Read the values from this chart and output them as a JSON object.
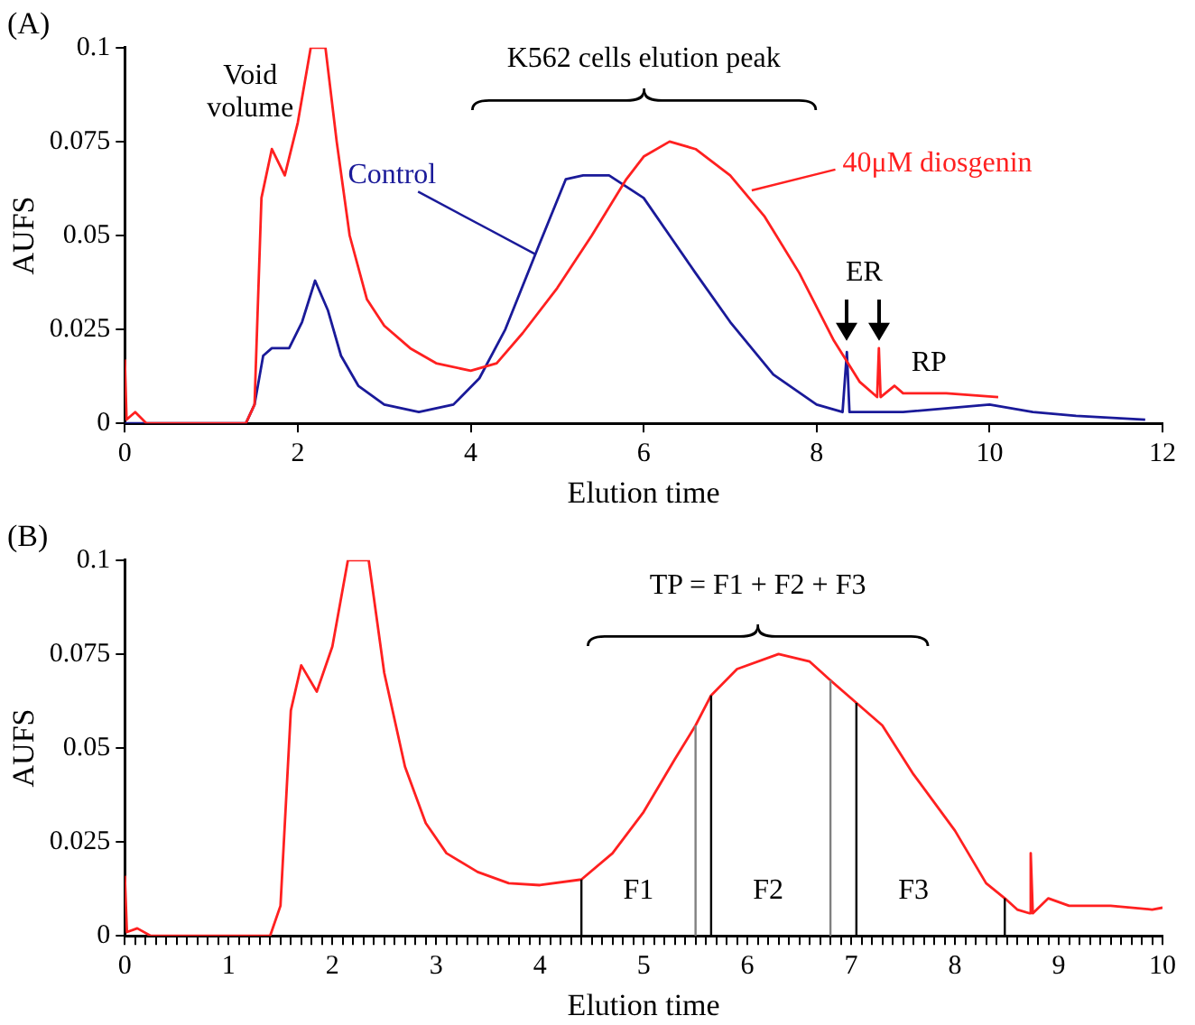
{
  "chart_data": [
    {
      "type": "line",
      "title": "(A)",
      "xlabel": "Elution time",
      "ylabel": "AUFS",
      "xlim": [
        0,
        12
      ],
      "xticks": [
        0,
        2,
        4,
        6,
        8,
        10,
        12
      ],
      "ylim": [
        0,
        0.1
      ],
      "yticks": [
        0,
        0.025,
        0.05,
        0.075,
        0.1
      ],
      "grid": false,
      "legend": "right",
      "marker": "none",
      "line_style": "solid",
      "series": [
        {
          "name": "40μM diosgenin",
          "color": "#ff2020",
          "x": [
            0,
            0.02,
            0.12,
            0.25,
            1.4,
            1.5,
            1.58,
            1.7,
            1.85,
            2.0,
            2.15,
            2.32,
            2.45,
            2.6,
            2.8,
            3.0,
            3.3,
            3.6,
            4.0,
            4.3,
            4.6,
            5.0,
            5.4,
            5.8,
            6.0,
            6.3,
            6.6,
            7.0,
            7.4,
            7.8,
            8.2,
            8.5,
            8.7,
            8.72,
            8.74,
            8.9,
            9.0,
            9.5,
            10.1
          ],
          "values": [
            0.017,
            0.001,
            0.003,
            0,
            0,
            0.005,
            0.06,
            0.073,
            0.066,
            0.08,
            0.1,
            0.1,
            0.075,
            0.05,
            0.033,
            0.026,
            0.02,
            0.016,
            0.014,
            0.016,
            0.024,
            0.036,
            0.05,
            0.065,
            0.071,
            0.075,
            0.073,
            0.066,
            0.055,
            0.04,
            0.022,
            0.011,
            0.007,
            0.02,
            0.007,
            0.01,
            0.008,
            0.008,
            0.007
          ]
        },
        {
          "name": "Control",
          "color": "#1a1a99",
          "x": [
            0,
            1.4,
            1.5,
            1.6,
            1.7,
            1.9,
            2.05,
            2.2,
            2.35,
            2.5,
            2.7,
            3.0,
            3.4,
            3.8,
            4.1,
            4.4,
            4.8,
            5.1,
            5.3,
            5.6,
            5.8,
            6.0,
            6.3,
            6.6,
            7.0,
            7.5,
            8.0,
            8.3,
            8.35,
            8.38,
            9.0,
            10.0,
            10.5,
            11.0,
            11.8
          ],
          "values": [
            0,
            0,
            0.005,
            0.018,
            0.02,
            0.02,
            0.027,
            0.038,
            0.03,
            0.018,
            0.01,
            0.005,
            0.003,
            0.005,
            0.012,
            0.025,
            0.048,
            0.065,
            0.066,
            0.066,
            0.063,
            0.06,
            0.05,
            0.04,
            0.027,
            0.013,
            0.005,
            0.003,
            0.019,
            0.003,
            0.003,
            0.005,
            0.003,
            0.002,
            0.001
          ]
        }
      ],
      "annotations": [
        "Void volume",
        "K562 cells elution peak",
        "ER",
        "RP"
      ]
    },
    {
      "type": "line",
      "title": "(B)",
      "xlabel": "Elution time",
      "ylabel": "AUFS",
      "xlim": [
        0,
        10
      ],
      "xticks": [
        0,
        {
          "value": 0.1,
          "label": null
        },
        {
          "value": 0.2,
          "label": null
        },
        {
          "value": 0.3,
          "label": null
        },
        {
          "value": 0.4,
          "label": null
        },
        {
          "value": 0.5,
          "label": null
        },
        {
          "value": 0.6,
          "label": null
        },
        {
          "value": 0.7,
          "label": null
        },
        {
          "value": 0.8,
          "label": null
        },
        {
          "value": 0.9,
          "label": null
        },
        1,
        {
          "value": 1.1,
          "label": null
        },
        {
          "value": 1.2,
          "label": null
        },
        {
          "value": 1.3,
          "label": null
        },
        {
          "value": 1.4,
          "label": null
        },
        {
          "value": 1.5,
          "label": null
        },
        {
          "value": 1.6,
          "label": null
        },
        {
          "value": 1.7,
          "label": null
        },
        {
          "value": 1.8,
          "label": null
        },
        {
          "value": 1.9,
          "label": null
        },
        2,
        {
          "value": 2.1,
          "label": null
        },
        {
          "value": 2.2,
          "label": null
        },
        {
          "value": 2.3,
          "label": null
        },
        {
          "value": 2.4,
          "label": null
        },
        {
          "value": 2.5,
          "label": null
        },
        {
          "value": 2.6,
          "label": null
        },
        {
          "value": 2.7,
          "label": null
        },
        {
          "value": 2.8,
          "label": null
        },
        {
          "value": 2.9,
          "label": null
        },
        3,
        {
          "value": 3.1,
          "label": null
        },
        {
          "value": 3.2,
          "label": null
        },
        {
          "value": 3.3,
          "label": null
        },
        {
          "value": 3.4,
          "label": null
        },
        {
          "value": 3.5,
          "label": null
        },
        {
          "value": 3.6,
          "label": null
        },
        {
          "value": 3.7,
          "label": null
        },
        {
          "value": 3.8,
          "label": null
        },
        {
          "value": 3.9,
          "label": null
        },
        4,
        {
          "value": 4.1,
          "label": null
        },
        {
          "value": 4.2,
          "label": null
        },
        {
          "value": 4.3,
          "label": null
        },
        {
          "value": 4.4,
          "label": null
        },
        {
          "value": 4.5,
          "label": null
        },
        {
          "value": 4.6,
          "label": null
        },
        {
          "value": 4.7,
          "label": null
        },
        {
          "value": 4.8,
          "label": null
        },
        {
          "value": 4.9,
          "label": null
        },
        5,
        {
          "value": 5.1,
          "label": null
        },
        {
          "value": 5.2,
          "label": null
        },
        {
          "value": 5.3,
          "label": null
        },
        {
          "value": 5.4,
          "label": null
        },
        {
          "value": 5.5,
          "label": null
        },
        {
          "value": 5.6,
          "label": null
        },
        {
          "value": 5.7,
          "label": null
        },
        {
          "value": 5.8,
          "label": null
        },
        {
          "value": 5.9,
          "label": null
        },
        6,
        {
          "value": 6.1,
          "label": null
        },
        {
          "value": 6.2,
          "label": null
        },
        {
          "value": 6.3,
          "label": null
        },
        {
          "value": 6.4,
          "label": null
        },
        {
          "value": 6.5,
          "label": null
        },
        {
          "value": 6.6,
          "label": null
        },
        {
          "value": 6.7,
          "label": null
        },
        {
          "value": 6.8,
          "label": null
        },
        {
          "value": 6.9,
          "label": null
        },
        7,
        {
          "value": 7.1,
          "label": null
        },
        {
          "value": 7.2,
          "label": null
        },
        {
          "value": 7.3,
          "label": null
        },
        {
          "value": 7.4,
          "label": null
        },
        {
          "value": 7.5,
          "label": null
        },
        {
          "value": 7.6,
          "label": null
        },
        {
          "value": 7.7,
          "label": null
        },
        {
          "value": 7.8,
          "label": null
        },
        {
          "value": 7.9,
          "label": null
        },
        8,
        {
          "value": 8.1,
          "label": null
        },
        {
          "value": 8.2,
          "label": null
        },
        {
          "value": 8.3,
          "label": null
        },
        {
          "value": 8.4,
          "label": null
        },
        {
          "value": 8.5,
          "label": null
        },
        {
          "value": 8.6,
          "label": null
        },
        {
          "value": 8.7,
          "label": null
        },
        {
          "value": 8.8,
          "label": null
        },
        {
          "value": 8.9,
          "label": null
        },
        9,
        {
          "value": 9.1,
          "label": null
        },
        {
          "value": 9.2,
          "label": null
        },
        {
          "value": 9.3,
          "label": null
        },
        {
          "value": 9.4,
          "label": null
        },
        {
          "value": 9.5,
          "label": null
        },
        {
          "value": 9.6,
          "label": null
        },
        {
          "value": 9.7,
          "label": null
        },
        {
          "value": 9.8,
          "label": null
        },
        {
          "value": 9.9,
          "label": null
        },
        10
      ],
      "ylim": [
        0,
        0.1
      ],
      "yticks": [
        0,
        0.025,
        0.05,
        0.075,
        0.1
      ],
      "grid": false,
      "legend": false,
      "marker": "none",
      "line_style": "solid",
      "series": [
        {
          "color": "#ff2020",
          "x": [
            0,
            0.02,
            0.12,
            0.25,
            1.4,
            1.5,
            1.6,
            1.7,
            1.85,
            2.0,
            2.15,
            2.35,
            2.5,
            2.7,
            2.9,
            3.1,
            3.4,
            3.7,
            4.0,
            4.4,
            4.7,
            5.0,
            5.3,
            5.5,
            5.65,
            5.9,
            6.3,
            6.6,
            6.8,
            7.05,
            7.3,
            7.6,
            8.0,
            8.3,
            8.48,
            8.6,
            8.72,
            8.73,
            8.75,
            8.9,
            9.1,
            9.5,
            9.9,
            10
          ],
          "values": [
            0.016,
            0.001,
            0.002,
            0,
            0,
            0.008,
            0.06,
            0.072,
            0.065,
            0.077,
            0.1,
            0.1,
            0.07,
            0.045,
            0.03,
            0.022,
            0.017,
            0.014,
            0.0135,
            0.015,
            0.022,
            0.033,
            0.047,
            0.056,
            0.064,
            0.071,
            0.075,
            0.073,
            0.068,
            0.062,
            0.056,
            0.043,
            0.028,
            0.014,
            0.01,
            0.007,
            0.006,
            0.022,
            0.006,
            0.01,
            0.008,
            0.008,
            0.007,
            0.0075
          ]
        }
      ],
      "ref_lines": [
        {
          "axis": "x",
          "value": 4.4,
          "color": "#000000"
        },
        {
          "axis": "x",
          "value": 5.5,
          "color": "#808080"
        },
        {
          "axis": "x",
          "value": 5.65,
          "color": "#000000"
        },
        {
          "axis": "x",
          "value": 6.8,
          "color": "#808080"
        },
        {
          "axis": "x",
          "value": 7.05,
          "color": "#000000"
        },
        {
          "axis": "x",
          "value": 8.48,
          "color": "#000000"
        }
      ],
      "annotations": [
        "TP = F1 + F2 + F3",
        "F1",
        "F2",
        "F3"
      ]
    }
  ]
}
